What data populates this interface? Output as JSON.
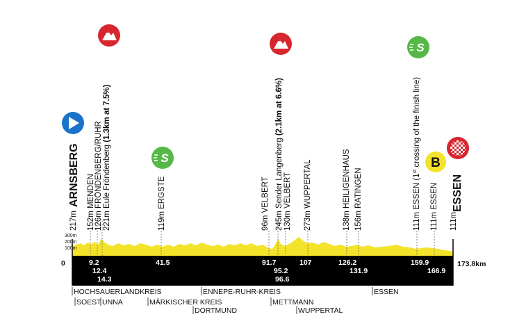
{
  "profile": {
    "total_distance_label": "173.8km",
    "start_km_label": "0",
    "altitude_axis": [
      "300m",
      "200m",
      "100m"
    ],
    "colors": {
      "profile_fill": "#f3e32a",
      "band": "#000000",
      "start_marker": "#1a73c9",
      "climb_marker": "#d7262d",
      "sprint_marker": "#56b847",
      "bonus_marker": "#f3e32a",
      "finish_marker": "#d7262d"
    }
  },
  "points": [
    {
      "id": "arnsberg",
      "km": "",
      "label_alt": "217m",
      "label_name": "ARNSBERG"
    },
    {
      "id": "menden",
      "km": "9.2",
      "label": "152m MENDEN"
    },
    {
      "id": "frondenberg",
      "km": "12.4",
      "label": "126m FRÖNDENBERG/RUHR"
    },
    {
      "id": "eule",
      "km": "14.3",
      "label_plain": "221m Eule Fröndenberg",
      "label_bold": "(1.3km at 7.5%)"
    },
    {
      "id": "ergste",
      "km": "41.5",
      "label": "119m ERGSTE"
    },
    {
      "id": "velbert1",
      "km": "91.7",
      "label": "96m VELBERT"
    },
    {
      "id": "langenberg",
      "km": "95.2",
      "label_plain": "245m Sender Langenberg",
      "label_bold": "(2.1km at 6.6%)"
    },
    {
      "id": "velbert2",
      "km": "96.6",
      "label": "130m VELBERT"
    },
    {
      "id": "wuppertal",
      "km": "107",
      "label": "273m WUPPERTAL"
    },
    {
      "id": "heiligenhaus",
      "km": "126.2",
      "label": "138m HEILIGENHAUS"
    },
    {
      "id": "ratingen",
      "km": "131.9",
      "label": "156m RATINGEN"
    },
    {
      "id": "essen1",
      "km": "159.9",
      "label_plain": "111m ESSEN (1",
      "label_sup": "st",
      "label_tail": " crossing of the finish line)"
    },
    {
      "id": "essen2",
      "km": "166.9",
      "label": "111m ESSEN"
    },
    {
      "id": "essen-finish",
      "km": "",
      "label_alt": "111m",
      "label_name": "ESSEN"
    }
  ],
  "markers": {
    "bonus_letter": "B",
    "sprint_letter": "S"
  },
  "regions": [
    {
      "id": "hochsauerlandkreis",
      "label": "HOCHSAUERLANDKREIS"
    },
    {
      "id": "soest",
      "label": "SOEST"
    },
    {
      "id": "unna",
      "label": "UNNA"
    },
    {
      "id": "maerkischer-kreis",
      "label": "MÄRKISCHER KREIS"
    },
    {
      "id": "dortmund",
      "label": "DORTMUND"
    },
    {
      "id": "ennepe-ruhr-kreis",
      "label": "ENNEPE-RUHR-KREIS"
    },
    {
      "id": "mettmann",
      "label": "METTMANN"
    },
    {
      "id": "wuppertal-region",
      "label": "WUPPERTAL"
    },
    {
      "id": "essen-region",
      "label": "ESSEN"
    }
  ]
}
